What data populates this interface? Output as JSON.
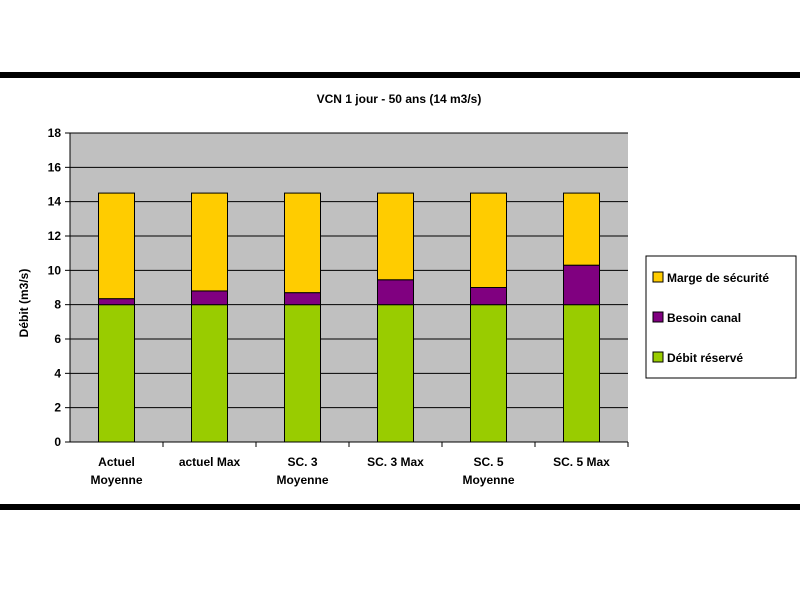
{
  "chart_data": {
    "type": "bar",
    "stacked": true,
    "title": "VCN 1 jour - 50 ans (14 m3/s)",
    "xlabel": "",
    "ylabel": "Débit (m3/s)",
    "ylim": [
      0,
      18
    ],
    "yticks": [
      "0",
      "2",
      "4",
      "6",
      "8",
      "10",
      "12",
      "14",
      "16",
      "18"
    ],
    "grid": true,
    "legend_position": "right",
    "categories": [
      [
        "Actuel",
        "Moyenne"
      ],
      [
        "actuel Max"
      ],
      [
        "SC. 3",
        "Moyenne"
      ],
      [
        "SC. 3 Max"
      ],
      [
        "SC. 5",
        "Moyenne"
      ],
      [
        "SC. 5 Max"
      ]
    ],
    "series": [
      {
        "name": "Débit réservé",
        "color": "#99cc00",
        "values": [
          8,
          8,
          8,
          8,
          8,
          8
        ]
      },
      {
        "name": "Besoin canal",
        "color": "#800080",
        "values": [
          0.35,
          0.8,
          0.7,
          1.45,
          1.0,
          2.3
        ]
      },
      {
        "name": "Marge de sécurité",
        "color": "#ffcc00",
        "values": [
          6.15,
          5.7,
          5.8,
          5.05,
          5.5,
          4.2
        ]
      }
    ],
    "legend_order": [
      "Marge de sécurité",
      "Besoin canal",
      "Débit réservé"
    ],
    "plot_background": "#c0c0c0"
  }
}
